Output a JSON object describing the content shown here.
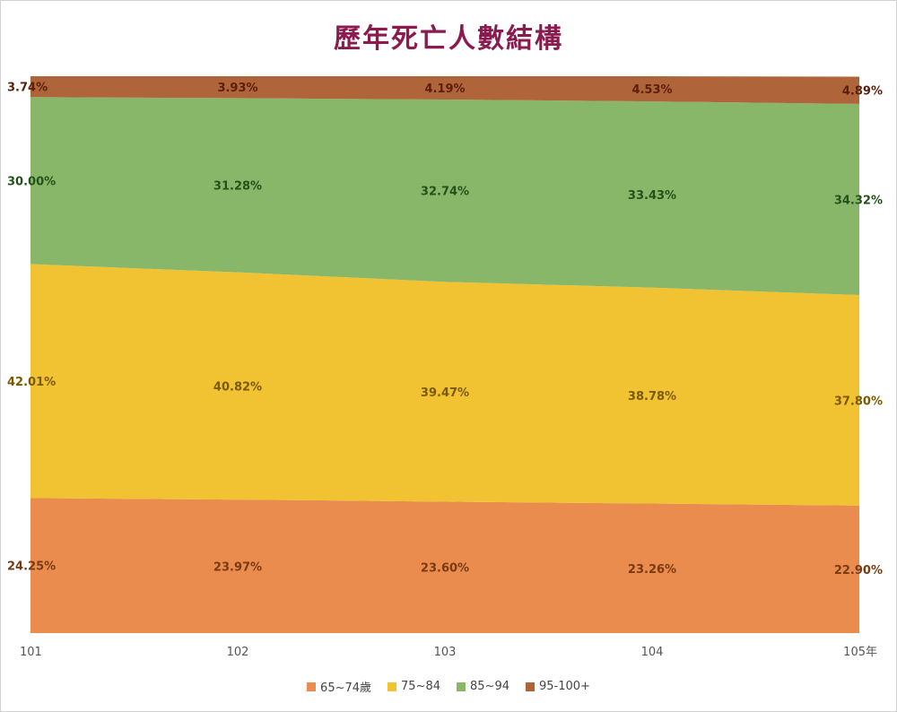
{
  "chart_data": {
    "type": "area",
    "stacked": true,
    "title": "歷年死亡人數結構",
    "categories": [
      "101",
      "102",
      "103",
      "104",
      "105年"
    ],
    "ylim": [
      0,
      100
    ],
    "grid": false,
    "legend_placement": "bottom",
    "series": [
      {
        "name": "65~74歲",
        "color": "#e98c4e",
        "label_color": "#7a3a12",
        "values": [
          24.25,
          23.97,
          23.6,
          23.26,
          22.9
        ],
        "labels": [
          "24.25%",
          "23.97%",
          "23.60%",
          "23.26%",
          "22.90%"
        ]
      },
      {
        "name": "75~84",
        "color": "#f1c232",
        "label_color": "#7a5a00",
        "values": [
          42.01,
          40.82,
          39.47,
          38.78,
          37.8
        ],
        "labels": [
          "42.01%",
          "40.82%",
          "39.47%",
          "38.78%",
          "37.80%"
        ]
      },
      {
        "name": "85~94",
        "color": "#88b76a",
        "label_color": "#24521a",
        "values": [
          30.0,
          31.28,
          32.74,
          33.43,
          34.32
        ],
        "labels": [
          "30.00%",
          "31.28%",
          "32.74%",
          "33.43%",
          "34.32%"
        ]
      },
      {
        "name": "95-100+",
        "color": "#b0643a",
        "label_color": "#5a1f0a",
        "values": [
          3.74,
          3.93,
          4.19,
          4.53,
          4.89
        ],
        "labels": [
          "3.74%",
          "3.93%",
          "4.19%",
          "4.53%",
          "4.89%"
        ]
      }
    ]
  }
}
